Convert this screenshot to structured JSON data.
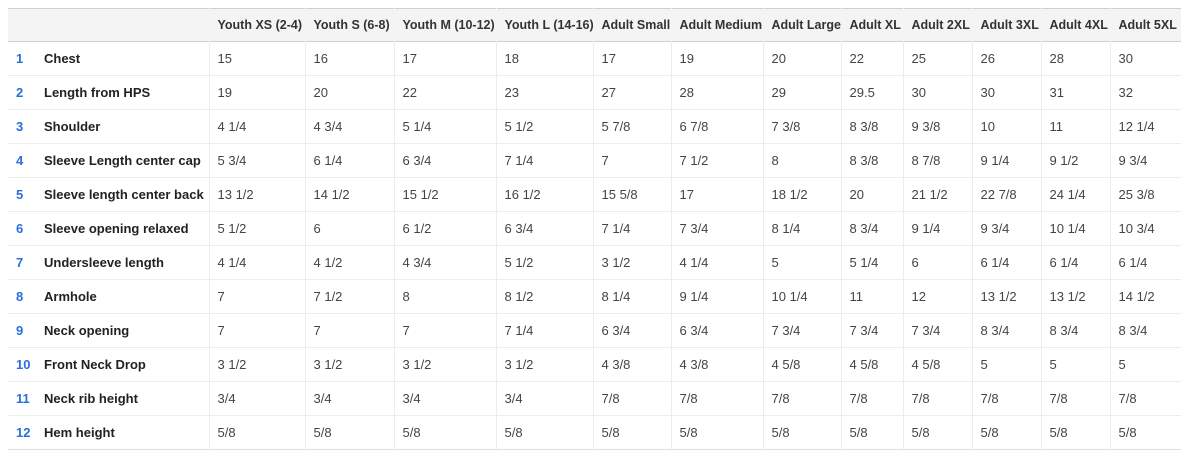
{
  "table": {
    "columns": [
      "",
      "",
      "Youth XS (2-4)",
      "Youth S (6-8)",
      "Youth M (10-12)",
      "Youth L (14-16)",
      "Adult Small",
      "Adult Medium",
      "Adult Large",
      "Adult XL",
      "Adult 2XL",
      "Adult 3XL",
      "Adult 4XL",
      "Adult 5XL"
    ],
    "rows": [
      {
        "num": "1",
        "label": "Chest",
        "values": [
          "15",
          "16",
          "17",
          "18",
          "17",
          "19",
          "20",
          "22",
          "25",
          "26",
          "28",
          "30"
        ]
      },
      {
        "num": "2",
        "label": "Length from HPS",
        "values": [
          "19",
          "20",
          "22",
          "23",
          "27",
          "28",
          "29",
          "29.5",
          "30",
          "30",
          "31",
          "32"
        ]
      },
      {
        "num": "3",
        "label": "Shoulder",
        "values": [
          "4 1/4",
          "4 3/4",
          "5 1/4",
          "5 1/2",
          "5 7/8",
          "6 7/8",
          "7 3/8",
          "8 3/8",
          "9 3/8",
          "10",
          "11",
          "12 1/4"
        ]
      },
      {
        "num": "4",
        "label": "Sleeve Length center cap",
        "values": [
          "5 3/4",
          "6 1/4",
          "6 3/4",
          "7 1/4",
          "7",
          "7 1/2",
          "8",
          "8 3/8",
          "8 7/8",
          "9 1/4",
          "9 1/2",
          "9 3/4"
        ]
      },
      {
        "num": "5",
        "label": "Sleeve length center back",
        "values": [
          "13 1/2",
          "14 1/2",
          "15 1/2",
          "16 1/2",
          "15 5/8",
          "17",
          "18 1/2",
          "20",
          "21 1/2",
          "22 7/8",
          "24 1/4",
          "25 3/8"
        ]
      },
      {
        "num": "6",
        "label": "Sleeve opening relaxed",
        "values": [
          "5 1/2",
          "6",
          "6 1/2",
          "6 3/4",
          "7 1/4",
          "7 3/4",
          "8 1/4",
          "8 3/4",
          "9 1/4",
          "9 3/4",
          "10 1/4",
          "10 3/4"
        ]
      },
      {
        "num": "7",
        "label": "Undersleeve length",
        "values": [
          "4 1/4",
          "4 1/2",
          "4 3/4",
          "5 1/2",
          "3 1/2",
          "4 1/4",
          "5",
          "5 1/4",
          "6",
          "6 1/4",
          "6 1/4",
          "6 1/4"
        ]
      },
      {
        "num": "8",
        "label": "Armhole",
        "values": [
          "7",
          "7 1/2",
          "8",
          "8 1/2",
          "8 1/4",
          "9 1/4",
          "10 1/4",
          "11",
          "12",
          "13 1/2",
          "13 1/2",
          "14 1/2"
        ]
      },
      {
        "num": "9",
        "label": "Neck opening",
        "values": [
          "7",
          "7",
          "7",
          "7 1/4",
          "6 3/4",
          "6 3/4",
          "7 3/4",
          "7 3/4",
          "7 3/4",
          "8 3/4",
          "8 3/4",
          "8 3/4"
        ]
      },
      {
        "num": "10",
        "label": "Front Neck Drop",
        "values": [
          "3 1/2",
          "3 1/2",
          "3 1/2",
          "3 1/2",
          "4 3/8",
          "4 3/8",
          "4 5/8",
          "4 5/8",
          "4 5/8",
          "5",
          "5",
          "5"
        ]
      },
      {
        "num": "11",
        "label": "Neck rib height",
        "values": [
          "3/4",
          "3/4",
          "3/4",
          "3/4",
          "7/8",
          "7/8",
          "7/8",
          "7/8",
          "7/8",
          "7/8",
          "7/8",
          "7/8"
        ]
      },
      {
        "num": "12",
        "label": "Hem height",
        "values": [
          "5/8",
          "5/8",
          "5/8",
          "5/8",
          "5/8",
          "5/8",
          "5/8",
          "5/8",
          "5/8",
          "5/8",
          "5/8",
          "5/8"
        ]
      }
    ]
  },
  "colors": {
    "row_number": "#2a6fdb",
    "header_background": "#f4f4f4",
    "row_border": "#ececec"
  }
}
